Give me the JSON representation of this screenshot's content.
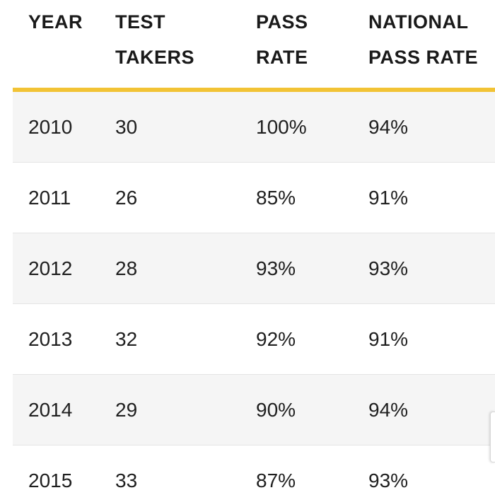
{
  "table": {
    "headers": {
      "year": [
        "YEAR"
      ],
      "test_takers": [
        "TEST",
        "TAKERS"
      ],
      "pass_rate": [
        "PASS",
        "RATE"
      ],
      "national_pass_rate": [
        "NATIONAL",
        "PASS RATE"
      ]
    },
    "rows": [
      {
        "year": "2010",
        "test_takers": "30",
        "pass_rate": "100%",
        "national_pass_rate": "94%"
      },
      {
        "year": "2011",
        "test_takers": "26",
        "pass_rate": "85%",
        "national_pass_rate": "91%"
      },
      {
        "year": "2012",
        "test_takers": "28",
        "pass_rate": "93%",
        "national_pass_rate": "93%"
      },
      {
        "year": "2013",
        "test_takers": "32",
        "pass_rate": "92%",
        "national_pass_rate": "91%"
      },
      {
        "year": "2014",
        "test_takers": "29",
        "pass_rate": "90%",
        "national_pass_rate": "94%"
      },
      {
        "year": "2015",
        "test_takers": "33",
        "pass_rate": "87%",
        "national_pass_rate": "93%"
      }
    ]
  },
  "colors": {
    "accent": "#f2c335",
    "row_shaded": "#f5f5f5",
    "row_plain": "#ffffff",
    "text": "#1a1a1a"
  }
}
